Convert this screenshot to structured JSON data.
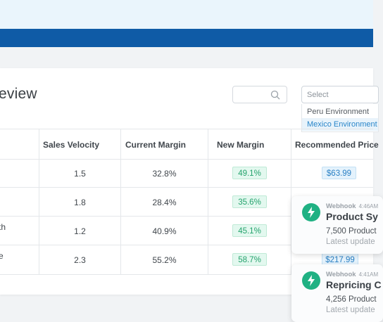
{
  "page": {
    "title": "eview"
  },
  "search": {
    "placeholder": ""
  },
  "select": {
    "placeholder": "Select",
    "options": [
      "Peru Environment",
      "Mexico Environment"
    ]
  },
  "table": {
    "columns": [
      "Sales Velocity",
      "Current Margin",
      "New Margin",
      "Recommended Price"
    ],
    "row_fragments": [
      "",
      "",
      "th",
      "e"
    ],
    "rows": [
      {
        "velocity": "1.5",
        "current_margin": "32.8%",
        "new_margin": "49.1%",
        "price": "$63.99"
      },
      {
        "velocity": "1.8",
        "current_margin": "28.4%",
        "new_margin": "35.6%",
        "price": ""
      },
      {
        "velocity": "1.2",
        "current_margin": "40.9%",
        "new_margin": "45.1%",
        "price": ""
      },
      {
        "velocity": "2.3",
        "current_margin": "55.2%",
        "new_margin": "58.7%",
        "price": "$217.99"
      }
    ]
  },
  "notifications": [
    {
      "source": "Webhook",
      "time": "4:46AM",
      "title": "Product Sy",
      "body": "7,500 Product",
      "sub": "Latest update"
    },
    {
      "source": "Webhook",
      "time": "4:41AM",
      "title": "Repricing C",
      "body": "4,256 Product",
      "sub": "Latest update"
    }
  ],
  "colors": {
    "navbar": "#0f5ba6",
    "accent_green": "#20b183",
    "accent_blue": "#2a80c4"
  }
}
